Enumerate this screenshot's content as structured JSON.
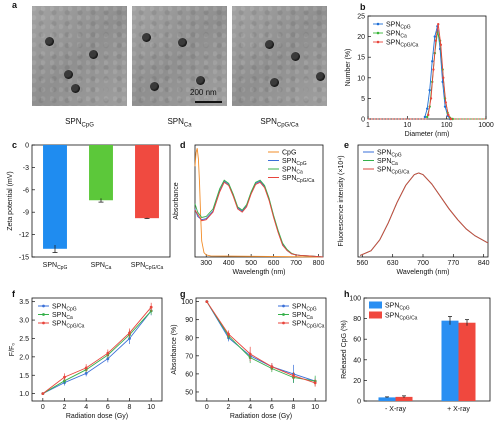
{
  "panels": {
    "a": {
      "letter": "a",
      "captions": [
        "SPN",
        "SPN",
        "SPN"
      ],
      "caption_subs": [
        "CpG",
        "Ca",
        "CpG/Ca"
      ],
      "scalebar": "200 nm"
    },
    "b": {
      "letter": "b"
    },
    "c": {
      "letter": "c"
    },
    "d": {
      "letter": "d"
    },
    "e": {
      "letter": "e"
    },
    "f": {
      "letter": "f"
    },
    "g": {
      "letter": "g"
    },
    "h": {
      "letter": "h"
    }
  },
  "chart_data": [
    {
      "id": "b",
      "type": "line",
      "xscale": "log",
      "xlabel": "Diameter (nm)",
      "ylabel": "Number (%)",
      "xlim": [
        1,
        1000
      ],
      "ylim": [
        0,
        25
      ],
      "xticks": [
        1,
        10,
        100,
        1000
      ],
      "yticks": [
        0,
        5,
        10,
        15,
        20,
        25
      ],
      "legend_position": "top-left",
      "series": [
        {
          "name": "SPN",
          "sub": "CpG",
          "color": "#1f6fd6",
          "x": [
            28,
            32,
            37,
            43,
            50,
            58,
            68,
            79,
            91,
            106,
            122
          ],
          "y": [
            0.5,
            2.5,
            7,
            14,
            20,
            22.5,
            17,
            9,
            3,
            0.8,
            0
          ]
        },
        {
          "name": "SPN",
          "sub": "Ca",
          "color": "#38b538",
          "x": [
            32,
            37,
            43,
            50,
            58,
            68,
            79,
            91,
            106,
            122,
            142
          ],
          "y": [
            0.5,
            3,
            9,
            16,
            21,
            19,
            12,
            5,
            1.5,
            0.3,
            0
          ]
        },
        {
          "name": "SPN",
          "sub": "CpG/Ca",
          "color": "#e8453c",
          "x": [
            34,
            40,
            46,
            53,
            61,
            71,
            82,
            95,
            110,
            128
          ],
          "y": [
            1,
            5,
            12,
            19,
            23,
            18,
            10,
            4,
            1,
            0
          ]
        }
      ]
    },
    {
      "id": "c",
      "type": "bar",
      "ylabel": "Zeta potential (mV)",
      "ylim": [
        -15,
        0
      ],
      "yticks": [
        0,
        -3,
        -6,
        -9,
        -12,
        -15
      ],
      "categories": [
        "SPN",
        "SPN",
        "SPN"
      ],
      "category_subs": [
        "CpG",
        "Ca",
        "CpG/Ca"
      ],
      "values": [
        -13.9,
        -7.4,
        -9.8
      ],
      "errors": [
        0.5,
        0.25,
        0.05
      ],
      "colors": [
        "#1f8cf0",
        "#5cc83a",
        "#f04a40"
      ]
    },
    {
      "id": "d",
      "type": "line",
      "xlabel": "Wavelength (nm)",
      "ylabel": "Absorbance",
      "xlim": [
        250,
        820
      ],
      "ylim": [
        0,
        1.05
      ],
      "xticks": [
        300,
        400,
        500,
        600,
        700,
        800
      ],
      "legend_position": "top-right",
      "series": [
        {
          "name": "CpG",
          "sub": "",
          "color": "#f28c28",
          "x": [
            250,
            255,
            260,
            265,
            270,
            275,
            280,
            290,
            300,
            320,
            820
          ],
          "y": [
            0.85,
            0.98,
            1.02,
            0.92,
            0.7,
            0.4,
            0.15,
            0.04,
            0.02,
            0.01,
            0.0
          ]
        },
        {
          "name": "SPN",
          "sub": "CpG",
          "color": "#3a6fd8",
          "x": [
            250,
            262,
            280,
            300,
            330,
            360,
            380,
            400,
            420,
            440,
            460,
            480,
            500,
            520,
            540,
            560,
            580,
            600,
            620,
            640,
            660,
            680,
            700,
            720,
            760,
            820
          ],
          "y": [
            0.45,
            0.38,
            0.35,
            0.36,
            0.43,
            0.62,
            0.71,
            0.68,
            0.58,
            0.46,
            0.43,
            0.48,
            0.6,
            0.69,
            0.71,
            0.66,
            0.54,
            0.38,
            0.24,
            0.12,
            0.06,
            0.03,
            0.02,
            0.015,
            0.01,
            0.0
          ]
        },
        {
          "name": "SPN",
          "sub": "Ca",
          "color": "#35b04a",
          "x": [
            250,
            262,
            280,
            300,
            330,
            360,
            380,
            400,
            420,
            440,
            460,
            480,
            500,
            520,
            540,
            560,
            580,
            600,
            620,
            640,
            660,
            680,
            700,
            720,
            760,
            820
          ],
          "y": [
            0.5,
            0.42,
            0.37,
            0.38,
            0.45,
            0.64,
            0.72,
            0.69,
            0.59,
            0.47,
            0.44,
            0.49,
            0.61,
            0.7,
            0.72,
            0.67,
            0.55,
            0.39,
            0.25,
            0.13,
            0.07,
            0.035,
            0.02,
            0.015,
            0.01,
            0.0
          ]
        },
        {
          "name": "SPN",
          "sub": "CpG/Ca",
          "color": "#e8453c",
          "x": [
            250,
            262,
            280,
            300,
            330,
            360,
            380,
            400,
            420,
            440,
            460,
            480,
            500,
            520,
            540,
            560,
            580,
            600,
            620,
            640,
            660,
            680,
            700,
            720,
            760,
            820
          ],
          "y": [
            0.44,
            0.4,
            0.34,
            0.35,
            0.42,
            0.61,
            0.7,
            0.67,
            0.57,
            0.45,
            0.42,
            0.47,
            0.59,
            0.68,
            0.7,
            0.65,
            0.53,
            0.37,
            0.23,
            0.11,
            0.06,
            0.03,
            0.02,
            0.015,
            0.01,
            0.0
          ]
        }
      ]
    },
    {
      "id": "e",
      "type": "line",
      "xlabel": "Wavelength (nm)",
      "ylabel": "Fluorescence intensity (×10⁴)",
      "xlim": [
        550,
        850
      ],
      "ylim": [
        0,
        3.6
      ],
      "xticks": [
        560,
        630,
        700,
        770,
        840
      ],
      "legend_position": "top-left",
      "series": [
        {
          "name": "SPN",
          "sub": "CpG",
          "color": "#3a6fd8",
          "x": [
            555,
            580,
            600,
            620,
            640,
            660,
            680,
            690,
            700,
            720,
            740,
            760,
            780,
            800,
            820,
            850
          ],
          "y": [
            0.05,
            0.2,
            0.55,
            1.1,
            1.75,
            2.3,
            2.65,
            2.7,
            2.65,
            2.35,
            1.95,
            1.55,
            1.2,
            0.9,
            0.68,
            0.45
          ]
        },
        {
          "name": "SPN",
          "sub": "Ca",
          "color": "#35b04a",
          "x": [
            555,
            580,
            600,
            620,
            640,
            660,
            680,
            690,
            700,
            720,
            740,
            760,
            780,
            800,
            820,
            850
          ],
          "y": [
            0.05,
            0.2,
            0.55,
            1.1,
            1.75,
            2.3,
            2.65,
            2.7,
            2.65,
            2.35,
            1.95,
            1.55,
            1.2,
            0.9,
            0.68,
            0.45
          ]
        },
        {
          "name": "SPN",
          "sub": "CpG/Ca",
          "color": "#d8453c",
          "x": [
            555,
            580,
            600,
            620,
            640,
            660,
            680,
            690,
            700,
            720,
            740,
            760,
            780,
            800,
            820,
            850
          ],
          "y": [
            0.05,
            0.2,
            0.55,
            1.1,
            1.75,
            2.3,
            2.65,
            2.7,
            2.65,
            2.35,
            1.95,
            1.55,
            1.2,
            0.9,
            0.68,
            0.45
          ]
        }
      ]
    },
    {
      "id": "f",
      "type": "line",
      "xlabel": "Radiation dose (Gy)",
      "ylabel": "F/F₀",
      "xlim": [
        -1,
        11
      ],
      "ylim": [
        0.8,
        3.6
      ],
      "xticks": [
        0,
        2,
        4,
        6,
        8,
        10
      ],
      "yticks": [
        1.0,
        1.5,
        2.0,
        2.5,
        3.0,
        3.5
      ],
      "legend_position": "top-left",
      "series": [
        {
          "name": "SPN",
          "sub": "CpG",
          "color": "#3a6fd8",
          "x": [
            0,
            2,
            4,
            6,
            8,
            10
          ],
          "y": [
            1.0,
            1.3,
            1.55,
            1.95,
            2.5,
            3.25
          ],
          "err": [
            0.02,
            0.08,
            0.08,
            0.1,
            0.15,
            0.12
          ]
        },
        {
          "name": "SPN",
          "sub": "Ca",
          "color": "#35b04a",
          "x": [
            0,
            2,
            4,
            6,
            8,
            10
          ],
          "y": [
            1.0,
            1.35,
            1.65,
            2.05,
            2.6,
            3.25
          ],
          "err": [
            0.02,
            0.08,
            0.08,
            0.1,
            0.12,
            0.1
          ]
        },
        {
          "name": "SPN",
          "sub": "CpG/Ca",
          "color": "#e8453c",
          "x": [
            0,
            2,
            4,
            6,
            8,
            10
          ],
          "y": [
            1.0,
            1.45,
            1.7,
            2.1,
            2.65,
            3.35
          ],
          "err": [
            0.02,
            0.1,
            0.1,
            0.1,
            0.12,
            0.12
          ]
        }
      ]
    },
    {
      "id": "g",
      "type": "line",
      "xlabel": "Radiation dose (Gy)",
      "ylabel": "Absorbance (%)",
      "xlim": [
        -1,
        11
      ],
      "ylim": [
        45,
        102
      ],
      "xticks": [
        0,
        2,
        4,
        6,
        8,
        10
      ],
      "yticks": [
        50,
        60,
        70,
        80,
        90,
        100
      ],
      "legend_position": "top-right",
      "series": [
        {
          "name": "SPN",
          "sub": "CpG",
          "color": "#3a6fd8",
          "x": [
            0,
            2,
            4,
            6,
            8,
            10
          ],
          "y": [
            100,
            80,
            70,
            64,
            60,
            56
          ],
          "err": [
            0.5,
            2,
            3,
            2,
            5,
            2
          ]
        },
        {
          "name": "SPN",
          "sub": "Ca",
          "color": "#35b04a",
          "x": [
            0,
            2,
            4,
            6,
            8,
            10
          ],
          "y": [
            100,
            81,
            69,
            63,
            58,
            56
          ],
          "err": [
            0.5,
            2,
            3,
            2,
            3,
            3
          ]
        },
        {
          "name": "SPN",
          "sub": "CpG/Ca",
          "color": "#e8453c",
          "x": [
            0,
            2,
            4,
            6,
            8,
            10
          ],
          "y": [
            100,
            82,
            71,
            64,
            59,
            55
          ],
          "err": [
            0.5,
            2,
            4,
            2,
            2,
            2
          ]
        }
      ]
    },
    {
      "id": "h",
      "type": "bar",
      "ylabel": "Released CpG (%)",
      "ylim": [
        0,
        100
      ],
      "yticks": [
        0,
        20,
        40,
        60,
        80,
        100
      ],
      "categories": [
        "- X-ray",
        "+ X-ray"
      ],
      "legend_position": "top-left",
      "series": [
        {
          "name": "SPN",
          "sub": "CpG",
          "color": "#2a8ff2",
          "values": [
            3.5,
            78
          ],
          "errors": [
            0.5,
            4
          ]
        },
        {
          "name": "SPN",
          "sub": "CpG/Ca",
          "color": "#f0483e",
          "values": [
            4,
            76
          ],
          "errors": [
            1,
            3
          ]
        }
      ]
    }
  ]
}
